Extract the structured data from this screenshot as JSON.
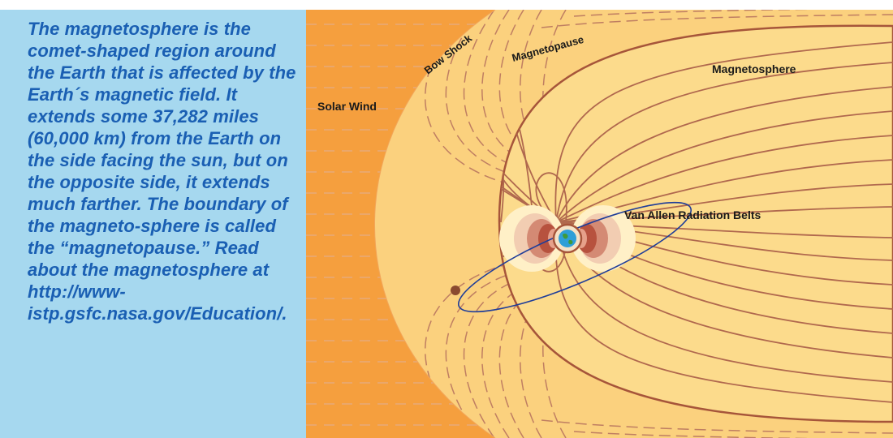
{
  "caption": "The magnetosphere is the comet-shaped region around the Earth that is affected by the Earth´s magnetic field. It extends some 37,282 miles (60,000 km) from the Earth on the side facing the sun, but on the opposite side, it extends much farther. The boundary of the magneto-sphere is called the “magnetopause.” Read about the magnetosphere at http://www-istp.gsfc.nasa.gov/Education/.",
  "labels": {
    "solar_wind": "Solar Wind",
    "bow_shock": "Bow Shock",
    "magnetopause": "Magnetopause",
    "magnetosphere": "Magnetosphere",
    "radiation_belts": "Van Allen Radiation Belts"
  },
  "colors": {
    "text_panel": "#a6d8ef",
    "caption_text": "#1a5fb3",
    "solar_wind": "#f59f3e",
    "magnetosheath": "#fbd17e",
    "magnetosphere": "#fcdb8c",
    "field_lines": "#b0684e",
    "orbit": "#1f3d99"
  },
  "icons": {
    "earth": "earth-icon",
    "satellite": "satellite-icon"
  }
}
